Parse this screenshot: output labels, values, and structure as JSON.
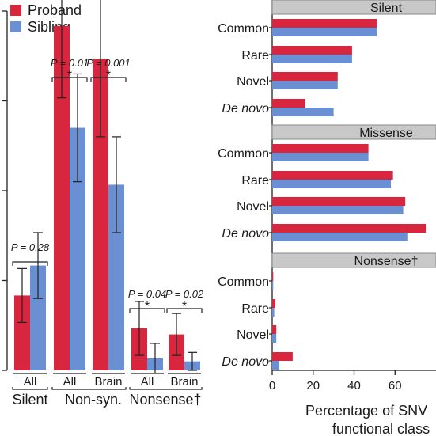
{
  "colors": {
    "proband": "#d7263d",
    "sibling": "#6a8fd3",
    "panel_header": "#c8c8c8",
    "axis": "#222222"
  },
  "chart_data": [
    {
      "type": "bar",
      "legend": {
        "placement": "top-left",
        "entries": [
          "Proband",
          "Sibling"
        ]
      },
      "series": [
        {
          "name": "Proband",
          "values": [
            1.25,
            5.75,
            5.2,
            0.7,
            0.6
          ],
          "error": [
            0.45,
            1.2,
            1.3,
            0.45,
            0.35
          ]
        },
        {
          "name": "Sibling",
          "values": [
            1.75,
            4.05,
            3.1,
            0.2,
            0.15
          ],
          "error": [
            0.55,
            0.9,
            0.8,
            0.25,
            0.15
          ]
        }
      ],
      "subcategories": [
        "All",
        "All",
        "Brain",
        "All",
        "Brain"
      ],
      "groups": [
        {
          "label": "Silent",
          "members": [
            0
          ]
        },
        {
          "label": "Non-syn.",
          "members": [
            1,
            2
          ]
        },
        {
          "label": "Nonsense†",
          "members": [
            3,
            4
          ]
        }
      ],
      "annotations": [
        {
          "text": "P = 0.28",
          "star": "",
          "members": [
            0
          ]
        },
        {
          "text": "P = 0.01",
          "star": "*",
          "members": [
            1
          ]
        },
        {
          "text": "P = 0.001",
          "star": "*",
          "members": [
            2
          ]
        },
        {
          "text": "P = 0.04",
          "star": "*",
          "members": [
            3
          ]
        },
        {
          "text": "P = 0.02",
          "star": "*",
          "members": [
            4
          ]
        }
      ],
      "ylim": [
        0,
        6.0
      ],
      "grid": false
    },
    {
      "type": "bar",
      "orientation": "horizontal",
      "panels": [
        {
          "title": "Silent",
          "categories": [
            "Common",
            "Rare",
            "Novel",
            "De novo"
          ],
          "proband": [
            51,
            39,
            32,
            16
          ],
          "sibling": [
            51,
            39,
            32,
            30
          ]
        },
        {
          "title": "Missense",
          "categories": [
            "Common",
            "Rare",
            "Novel",
            "De novo"
          ],
          "proband": [
            47,
            59,
            65,
            75
          ],
          "sibling": [
            47,
            58,
            64,
            66
          ]
        },
        {
          "title": "Nonsense†",
          "categories": [
            "Common",
            "Rare",
            "Novel",
            "De novo"
          ],
          "proband": [
            0.5,
            1.5,
            2,
            10
          ],
          "sibling": [
            0.5,
            1,
            2,
            3.5
          ]
        }
      ],
      "italic_categories": [
        "De novo"
      ],
      "xlim": [
        0,
        80
      ],
      "xticks": [
        0,
        20,
        40,
        60
      ],
      "xlabel_lines": [
        "Percentage of SNV",
        "functional class"
      ],
      "grid": false
    }
  ]
}
